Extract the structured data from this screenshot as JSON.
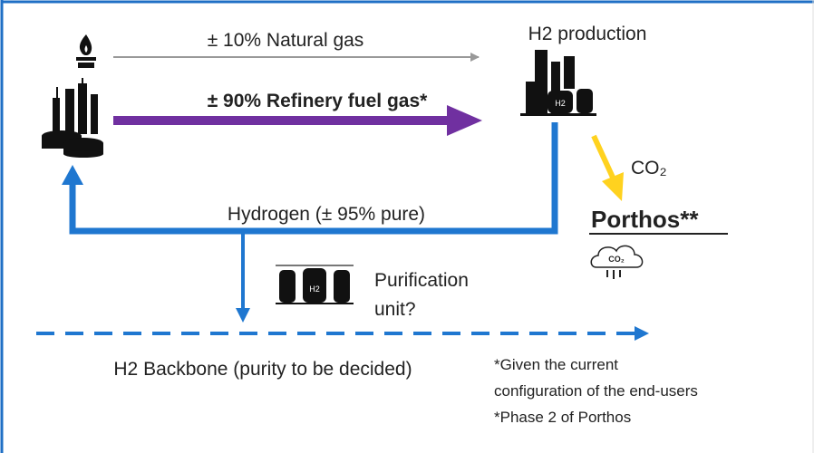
{
  "labels": {
    "natural_gas": "± 10% Natural gas",
    "refinery_fuel_gas": "± 90% Refinery fuel gas*",
    "h2_production": "H2 production",
    "co2": "CO₂",
    "porthos": "Porthos**",
    "hydrogen": "Hydrogen (± 95% pure)",
    "purification": [
      "Purification",
      "unit?"
    ],
    "backbone": "H2 Backbone (purity to be decided)"
  },
  "icons": {
    "h2_production_tank": "H2",
    "purification_tank": "H2",
    "cloud": "CO₂"
  },
  "notes": [
    "*Given the current",
    "configuration of the end-users",
    "*Phase 2 of Porthos"
  ]
}
